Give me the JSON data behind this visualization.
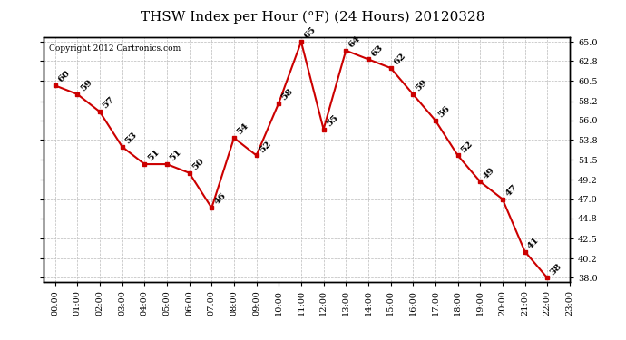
{
  "title": "THSW Index per Hour (°F) (24 Hours) 20120328",
  "copyright": "Copyright 2012 Cartronics.com",
  "hour_labels": [
    "00:00",
    "01:00",
    "02:00",
    "03:00",
    "04:00",
    "05:00",
    "06:00",
    "07:00",
    "08:00",
    "09:00",
    "10:00",
    "11:00",
    "12:00",
    "13:00",
    "14:00",
    "15:00",
    "16:00",
    "17:00",
    "18:00",
    "19:00",
    "20:00",
    "21:00",
    "22:00",
    "23:00"
  ],
  "values": [
    60,
    59,
    57,
    53,
    51,
    51,
    50,
    46,
    54,
    52,
    58,
    65,
    55,
    64,
    63,
    62,
    59,
    56,
    52,
    49,
    47,
    41,
    38
  ],
  "hours_data": [
    0,
    1,
    2,
    3,
    4,
    5,
    6,
    7,
    8,
    9,
    10,
    11,
    12,
    13,
    14,
    15,
    16,
    17,
    18,
    19,
    20,
    21,
    22
  ],
  "line_color": "#cc0000",
  "marker_color": "#cc0000",
  "bg_color": "#ffffff",
  "grid_color": "#bbbbbb",
  "yticks": [
    38.0,
    40.2,
    42.5,
    44.8,
    47.0,
    49.2,
    51.5,
    53.8,
    56.0,
    58.2,
    60.5,
    62.8,
    65.0
  ],
  "ymin": 37.5,
  "ymax": 65.5,
  "title_fontsize": 11,
  "label_fontsize": 7,
  "annotation_fontsize": 7.5,
  "copyright_fontsize": 6.5
}
